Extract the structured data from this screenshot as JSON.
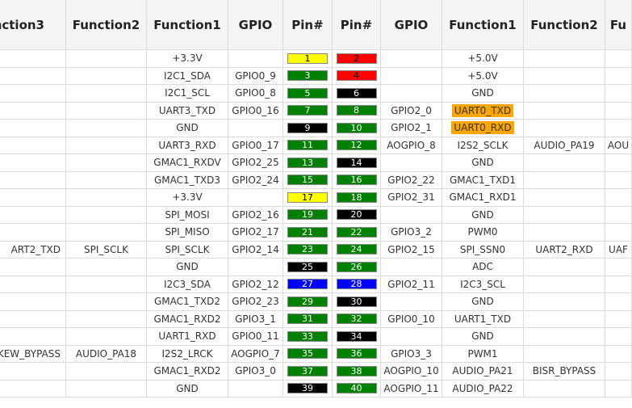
{
  "table": {
    "header": [
      "nction3",
      "Function2",
      "Function1",
      "GPIO",
      "Pin#",
      "Pin#",
      "GPIO",
      "Function1",
      "Function2",
      "Fu"
    ],
    "rows": [
      {
        "cells": [
          null,
          null,
          "+3.3V",
          null,
          1,
          2,
          null,
          "+5.0V",
          null,
          null
        ],
        "pin_colors": [
          "#ffff00",
          "#ff0000"
        ]
      },
      {
        "cells": [
          null,
          null,
          "I2C1_SDA",
          "GPIO0_9",
          3,
          4,
          null,
          "+5.0V",
          null,
          null
        ],
        "pin_colors": [
          "#008000",
          "#ff0000"
        ]
      },
      {
        "cells": [
          null,
          null,
          "I2C1_SCL",
          "GPIO0_8",
          5,
          6,
          null,
          "GND",
          null,
          null
        ],
        "pin_colors": [
          "#008000",
          "#000000"
        ]
      },
      {
        "cells": [
          null,
          null,
          "UART3_TXD",
          "GPIO0_16",
          7,
          8,
          "GPIO2_0",
          "UART0_TXD",
          null,
          null
        ],
        "pin_colors": [
          "#008000",
          "#008000"
        ],
        "highlight": {
          "col": 7,
          "color": "#ffa500"
        }
      },
      {
        "cells": [
          null,
          null,
          "GND",
          null,
          9,
          10,
          "GPIO2_1",
          "UART0_RXD",
          null,
          null
        ],
        "pin_colors": [
          "#000000",
          "#008000"
        ],
        "highlight": {
          "col": 7,
          "color": "#ffa500"
        }
      },
      {
        "cells": [
          null,
          null,
          "UART3_RXD",
          "GPIO0_17",
          11,
          12,
          "AOGPIO_8",
          "I2S2_SCLK",
          "AUDIO_PA19",
          "AOU"
        ],
        "pin_colors": [
          "#008000",
          "#008000"
        ]
      },
      {
        "cells": [
          null,
          null,
          "GMAC1_RXDV",
          "GPIO2_25",
          13,
          14,
          null,
          "GND",
          null,
          null
        ],
        "pin_colors": [
          "#008000",
          "#000000"
        ]
      },
      {
        "cells": [
          null,
          null,
          "GMAC1_TXD3",
          "GPIO2_24",
          15,
          16,
          "GPIO2_22",
          "GMAC1_TXD1",
          null,
          null
        ],
        "pin_colors": [
          "#008000",
          "#008000"
        ]
      },
      {
        "cells": [
          null,
          null,
          "+3.3V",
          null,
          17,
          18,
          "GPIO2_31",
          "GMAC1_RXD1",
          null,
          null
        ],
        "pin_colors": [
          "#ffff00",
          "#008000"
        ]
      },
      {
        "cells": [
          null,
          null,
          "SPI_MOSI",
          "GPIO2_16",
          19,
          20,
          null,
          "GND",
          null,
          null
        ],
        "pin_colors": [
          "#008000",
          "#000000"
        ]
      },
      {
        "cells": [
          null,
          null,
          "SPI_MISO",
          "GPIO2_17",
          21,
          22,
          "GPIO3_2",
          "PWM0",
          null,
          null
        ],
        "pin_colors": [
          "#008000",
          "#008000"
        ]
      },
      {
        "cells": [
          "ART2_TXD",
          "SPI_SCLK",
          "SPI_SCLK",
          "GPIO2_14",
          23,
          24,
          "GPIO2_15",
          "SPI_SSN0",
          "UART2_RXD",
          "UAF"
        ],
        "pin_colors": [
          "#008000",
          "#008000"
        ]
      },
      {
        "cells": [
          null,
          null,
          "GND",
          null,
          25,
          26,
          null,
          "ADC",
          null,
          null
        ],
        "pin_colors": [
          "#000000",
          "#008000"
        ]
      },
      {
        "cells": [
          null,
          null,
          "I2C3_SDA",
          "GPIO2_12",
          27,
          28,
          "GPIO2_11",
          "I2C3_SCL",
          null,
          null
        ],
        "pin_colors": [
          "#0000ff",
          "#0000ff"
        ]
      },
      {
        "cells": [
          null,
          null,
          "GMAC1_TXD2",
          "GPIO2_23",
          29,
          30,
          null,
          "GND",
          null,
          null
        ],
        "pin_colors": [
          "#008000",
          "#000000"
        ]
      },
      {
        "cells": [
          null,
          null,
          "GMAC1_RXD2",
          "GPIO3_1",
          31,
          32,
          "GPIO0_10",
          "UART1_TXD",
          null,
          null
        ],
        "pin_colors": [
          "#008000",
          "#008000"
        ]
      },
      {
        "cells": [
          null,
          null,
          "UART1_RXD",
          "GPIO0_11",
          33,
          34,
          null,
          "GND",
          null,
          null
        ],
        "pin_colors": [
          "#008000",
          "#000000"
        ]
      },
      {
        "cells": [
          "SKEW_BYPASS",
          "AUDIO_PA18",
          "I2S2_LRCK",
          "AOGPIO_7",
          35,
          36,
          "GPIO3_3",
          "PWM1",
          null,
          null
        ],
        "pin_colors": [
          "#008000",
          "#008000"
        ]
      },
      {
        "cells": [
          null,
          null,
          "GMAC1_RXD2",
          "GPIO3_0",
          37,
          38,
          "AOGPIO_10",
          "AUDIO_PA21",
          "BISR_BYPASS",
          null
        ],
        "pin_colors": [
          "#008000",
          "#008000"
        ]
      },
      {
        "cells": [
          null,
          null,
          "GND",
          null,
          39,
          40,
          "AOGPIO_11",
          "AUDIO_PA22",
          null,
          null
        ],
        "pin_colors": [
          "#000000",
          "#008000"
        ]
      }
    ]
  }
}
